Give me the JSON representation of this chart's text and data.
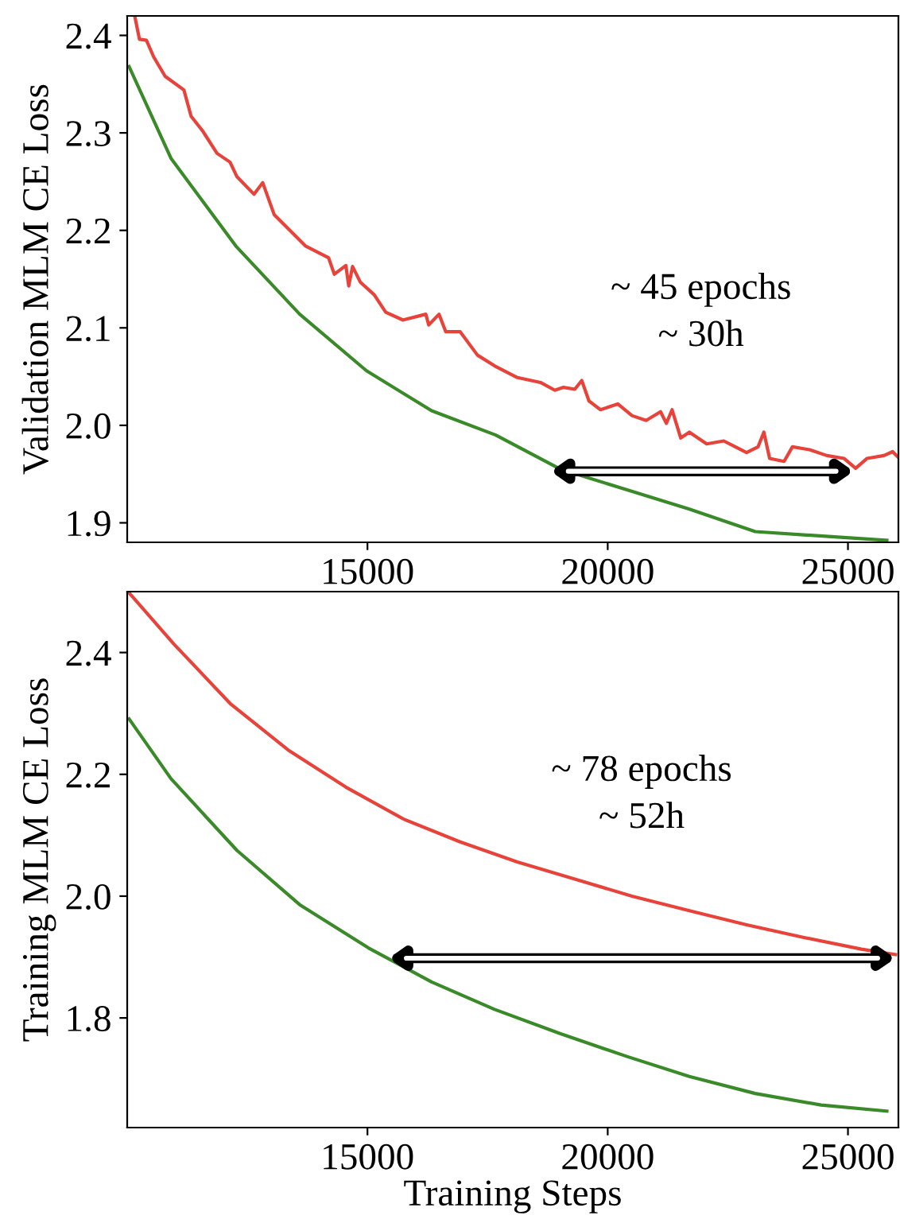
{
  "chart_data": [
    {
      "type": "line",
      "ylabel": "Validation MLM CE Loss",
      "xlim": [
        10000,
        26050
      ],
      "xticks": [
        15000,
        20000,
        25000
      ],
      "ylim": [
        1.88,
        2.42
      ],
      "yticks": [
        1.9,
        {
          "value": 2,
          "label": "2.0"
        },
        2.1,
        2.2,
        2.3,
        2.4
      ],
      "grid": false,
      "marker": "none",
      "line_style": "solid",
      "series": [
        {
          "color": "#e8433a",
          "x": [
            10160,
            10255,
            10400,
            10550,
            10790,
            11180,
            11330,
            11570,
            11870,
            12140,
            12285,
            12640,
            12820,
            13060,
            13710,
            14190,
            14310,
            14550,
            14610,
            14690,
            14850,
            15140,
            15380,
            15740,
            16215,
            16275,
            16490,
            16630,
            16930,
            17290,
            17645,
            18120,
            18600,
            18900,
            19080,
            19315,
            19460,
            19610,
            19850,
            20210,
            20505,
            20800,
            21100,
            21220,
            21340,
            21520,
            21700,
            22060,
            22415,
            22655,
            22890,
            23130,
            23250,
            23370,
            23670,
            23845,
            24200,
            24560,
            24920,
            25160,
            25395,
            25750,
            25930,
            26050
          ],
          "values": [
            2.419,
            2.396,
            2.395,
            2.378,
            2.358,
            2.344,
            2.317,
            2.302,
            2.279,
            2.27,
            2.255,
            2.237,
            2.249,
            2.216,
            2.184,
            2.172,
            2.155,
            2.164,
            2.143,
            2.163,
            2.147,
            2.134,
            2.116,
            2.108,
            2.114,
            2.103,
            2.114,
            2.096,
            2.096,
            2.072,
            2.061,
            2.049,
            2.044,
            2.036,
            2.039,
            2.037,
            2.046,
            2.025,
            2.016,
            2.022,
            2.01,
            2.005,
            2.014,
            2.002,
            2.016,
            1.987,
            1.993,
            1.981,
            1.984,
            1.978,
            1.972,
            1.978,
            1.993,
            1.966,
            1.963,
            1.978,
            1.975,
            1.969,
            1.966,
            1.956,
            1.966,
            1.969,
            1.973,
            1.967
          ]
        },
        {
          "color": "#3a8a2a",
          "x": [
            10040,
            10910,
            12260,
            13590,
            14980,
            16335,
            17670,
            19020,
            20390,
            21700,
            23070,
            25810
          ],
          "values": [
            2.368,
            2.274,
            2.184,
            2.114,
            2.056,
            2.015,
            1.99,
            1.955,
            1.934,
            1.914,
            1.891,
            1.882
          ]
        }
      ],
      "annotations": [
        "~ 45 epochs\n~ 30h"
      ]
    },
    {
      "type": "line",
      "xlabel": "Training Steps",
      "ylabel": "Training MLM CE Loss",
      "xlim": [
        10000,
        26050
      ],
      "xticks": [
        15000,
        20000,
        25000
      ],
      "ylim": [
        1.62,
        2.5
      ],
      "yticks": [
        1.8,
        {
          "value": 2,
          "label": "2.0"
        },
        2.2,
        2.4
      ],
      "grid": false,
      "marker": "none",
      "line_style": "solid",
      "series": [
        {
          "color": "#e8433a",
          "x": [
            10040,
            10970,
            12160,
            13350,
            14550,
            15740,
            16930,
            18120,
            19315,
            20505,
            21700,
            22890,
            24085,
            25280,
            25990
          ],
          "values": [
            2.498,
            2.414,
            2.315,
            2.24,
            2.179,
            2.127,
            2.089,
            2.056,
            2.028,
            2.0,
            1.976,
            1.953,
            1.932,
            1.913,
            1.904
          ]
        },
        {
          "color": "#3a8a2a",
          "x": [
            10040,
            10910,
            12285,
            13590,
            15020,
            16335,
            17645,
            19020,
            20390,
            21700,
            23070,
            24440,
            25810
          ],
          "values": [
            2.291,
            2.193,
            2.075,
            1.986,
            1.915,
            1.859,
            1.814,
            1.774,
            1.737,
            1.704,
            1.676,
            1.657,
            1.647
          ]
        }
      ],
      "annotations": [
        "~ 78 epochs\n~ 52h"
      ]
    }
  ]
}
